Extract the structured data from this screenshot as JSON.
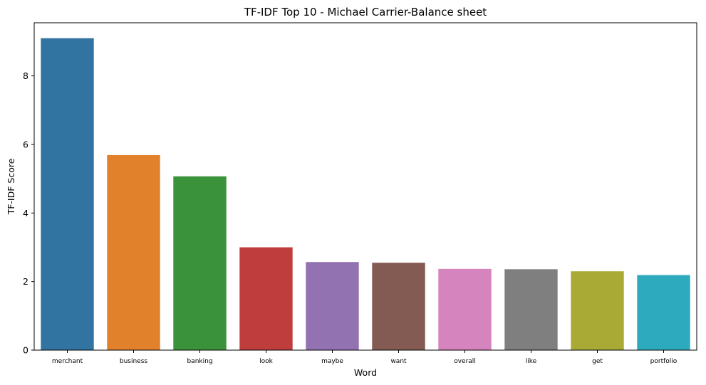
{
  "chart_data": {
    "type": "bar",
    "title": "TF-IDF Top 10 - Michael Carrier-Balance sheet",
    "xlabel": "Word",
    "ylabel": "TF-IDF Score",
    "categories": [
      "merchant",
      "business",
      "banking",
      "look",
      "maybe",
      "want",
      "overall",
      "like",
      "get",
      "portfolio"
    ],
    "values": [
      9.1,
      5.69,
      5.07,
      3.0,
      2.57,
      2.55,
      2.37,
      2.36,
      2.3,
      2.19
    ],
    "colors": [
      "#3274a1",
      "#e1812c",
      "#3a923a",
      "#c03d3e",
      "#9372b2",
      "#845b53",
      "#d684bd",
      "#7f7f7f",
      "#a9aa35",
      "#2eaabf"
    ],
    "yticks": [
      0,
      2,
      4,
      6,
      8
    ],
    "ylim": [
      0,
      9.55
    ],
    "grid": false,
    "legend": "none"
  }
}
